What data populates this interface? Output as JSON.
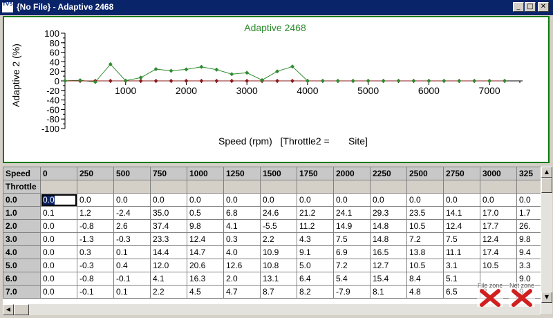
{
  "window": {
    "title": "{No File} - Adaptive 2468",
    "icon_text": "TVS"
  },
  "title_buttons": [
    "minimize-icon",
    "maximize-icon",
    "close-icon"
  ],
  "chart_data": {
    "type": "line",
    "title": "Adaptive 2468",
    "xlabel": "Speed (rpm)   [Throttle2 =       Site]",
    "ylabel": "Adaptive 2 (%)",
    "ylim": [
      -100,
      100
    ],
    "xlim": [
      0,
      7500
    ],
    "x_ticks": [
      1000,
      2000,
      3000,
      4000,
      5000,
      6000,
      7000
    ],
    "y_ticks": [
      100,
      80,
      60,
      40,
      20,
      0,
      -20,
      -40,
      -60,
      -80,
      -100
    ],
    "x": [
      0,
      250,
      500,
      750,
      1000,
      1250,
      1500,
      1750,
      2000,
      2250,
      2500,
      2750,
      3000,
      3250,
      3500,
      3750,
      4000,
      4250,
      4500,
      4750,
      5000,
      5250,
      5500,
      5750,
      6000,
      6250,
      6500,
      6750,
      7000,
      7250
    ],
    "series": [
      {
        "values": [
          0.1,
          1.2,
          -2.4,
          35.0,
          0.5,
          6.8,
          24.6,
          21.2,
          24.1,
          29.3,
          23.5,
          14.1,
          17.0,
          1.7,
          20.0,
          30.0,
          0,
          0,
          0,
          0,
          0,
          0,
          0,
          0,
          0,
          0,
          0,
          0,
          0,
          0
        ],
        "color": "#2e8b2e"
      },
      {
        "values": [
          0,
          0,
          0,
          0,
          0,
          0,
          0,
          0,
          0,
          0,
          0,
          0,
          0,
          0,
          0,
          0,
          0,
          0,
          0,
          0,
          0,
          0,
          0,
          0,
          0,
          0,
          0,
          0,
          0,
          0
        ],
        "color": "#8b1a1a"
      }
    ],
    "grid": false,
    "colors": {
      "title": "#2e8b2e",
      "series1": "#2e8b2e",
      "series0": "#8b1a1a",
      "frame": "#0a7a0a"
    }
  },
  "table": {
    "corner_top": "Speed",
    "corner_bottom": "Throttle",
    "columns": [
      "0",
      "250",
      "500",
      "750",
      "1000",
      "1250",
      "1500",
      "1750",
      "2000",
      "2250",
      "2500",
      "2750",
      "3000",
      "325"
    ],
    "rows": [
      {
        "label": "0.0",
        "cells": [
          "0.0",
          "0.0",
          "0.0",
          "0.0",
          "0.0",
          "0.0",
          "0.0",
          "0.0",
          "0.0",
          "0.0",
          "0.0",
          "0.0",
          "0.0",
          "0.0"
        ]
      },
      {
        "label": "1.0",
        "cells": [
          "0.1",
          "1.2",
          "-2.4",
          "35.0",
          "0.5",
          "6.8",
          "24.6",
          "21.2",
          "24.1",
          "29.3",
          "23.5",
          "14.1",
          "17.0",
          "1.7"
        ]
      },
      {
        "label": "2.0",
        "cells": [
          "0.0",
          "-0.8",
          "2.6",
          "37.4",
          "9.8",
          "4.1",
          "-5.5",
          "11.2",
          "14.9",
          "14.8",
          "10.5",
          "12.4",
          "17.7",
          "26."
        ]
      },
      {
        "label": "3.0",
        "cells": [
          "0.0",
          "-1.3",
          "-0.3",
          "23.3",
          "12.4",
          "0.3",
          "2.2",
          "4.3",
          "7.5",
          "14.8",
          "7.2",
          "7.5",
          "12.4",
          "9.8"
        ]
      },
      {
        "label": "4.0",
        "cells": [
          "0.0",
          "0.3",
          "0.1",
          "14.4",
          "14.7",
          "4.0",
          "10.9",
          "9.1",
          "6.9",
          "16.5",
          "13.8",
          "11.1",
          "17.4",
          "9.4"
        ]
      },
      {
        "label": "5.0",
        "cells": [
          "0.0",
          "-0.3",
          "0.4",
          "12.0",
          "20.6",
          "12.6",
          "10.8",
          "5.0",
          "7.2",
          "12.7",
          "10.5",
          "3.1",
          "10.5",
          "3.3"
        ]
      },
      {
        "label": "6.0",
        "cells": [
          "0.0",
          "-0.8",
          "-0.1",
          "4.1",
          "16.3",
          "2.0",
          "13.1",
          "6.4",
          "5.4",
          "15.4",
          "8.4",
          "5.1",
          "",
          "9.0"
        ]
      },
      {
        "label": "7.0",
        "cells": [
          "0.0",
          "-0.1",
          "0.1",
          "2.2",
          "4.5",
          "4.7",
          "8.7",
          "8.2",
          "-7.9",
          "8.1",
          "4.8",
          "6.5",
          "8.",
          "9."
        ]
      }
    ]
  },
  "zones": {
    "file_zone": "File zone",
    "net_zone": "Net zone",
    "x_color": "#d02020"
  }
}
